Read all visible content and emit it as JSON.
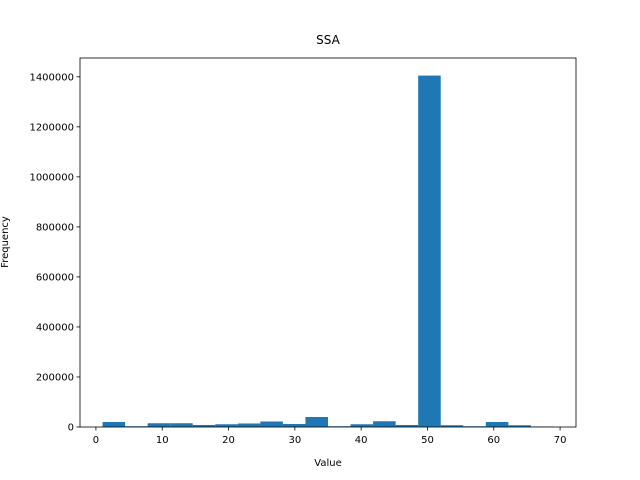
{
  "chart_data": {
    "type": "histogram",
    "title": "SSA",
    "xlabel": "Value",
    "ylabel": "Frequency",
    "bins": [
      1,
      4.4,
      7.8,
      11.2,
      14.6,
      18,
      21.4,
      24.8,
      28.2,
      31.6,
      35,
      38.4,
      41.8,
      45.2,
      48.6,
      52,
      55.4,
      58.8,
      62.2,
      65.6,
      69
    ],
    "values": [
      20000,
      3000,
      15000,
      15000,
      8000,
      11000,
      14000,
      22000,
      12000,
      40000,
      3000,
      11000,
      23000,
      8000,
      1405000,
      7000,
      3000,
      20000,
      7000,
      2000
    ],
    "color": "#1f77b4",
    "xlim": [
      -2.4,
      72.4
    ],
    "xticks": [
      0,
      10,
      20,
      30,
      40,
      50,
      60,
      70
    ],
    "ylim": [
      0,
      1475250
    ],
    "yticks": [
      0,
      200000,
      400000,
      600000,
      800000,
      1000000,
      1200000,
      1400000
    ],
    "grid": false
  }
}
